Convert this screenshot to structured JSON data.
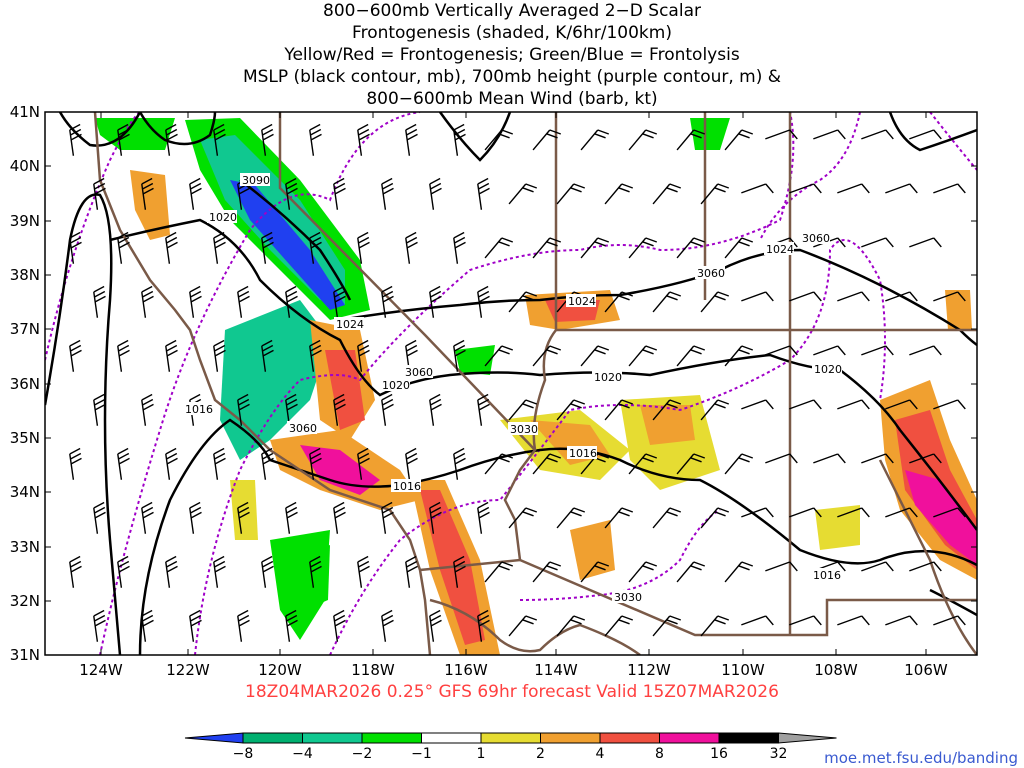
{
  "title_lines": [
    "800−600mb Vertically Averaged 2−D Scalar",
    "Frontogenesis (shaded, K/6hr/100km)",
    "Yellow/Red = Frontogenesis;  Green/Blue = Frontolysis",
    "MSLP (black contour, mb), 700mb height (purple contour, m) &",
    "800−600mb Mean Wind (barb, kt)"
  ],
  "lat_labels": [
    "41N",
    "40N",
    "39N",
    "38N",
    "37N",
    "36N",
    "35N",
    "34N",
    "33N",
    "32N",
    "31N"
  ],
  "lon_labels": [
    "124W",
    "122W",
    "120W",
    "118W",
    "116W",
    "114W",
    "112W",
    "110W",
    "108W",
    "106W"
  ],
  "mslp_labels": [
    "1020",
    "1024",
    "1020",
    "1016",
    "1016",
    "1024",
    "1020",
    "1024",
    "1020",
    "1016",
    "1016"
  ],
  "height_labels": [
    "3090",
    "3060",
    "3060",
    "3030",
    "3060",
    "3060",
    "3030"
  ],
  "footer": "18Z04MAR2026 0.25° GFS 69hr forecast Valid 15Z07MAR2026",
  "credit": "moe.met.fsu.edu/banding",
  "colorbar": {
    "labels": [
      "−8",
      "−4",
      "−2",
      "−1",
      "1",
      "2",
      "4",
      "8",
      "16",
      "32"
    ],
    "colors": [
      "#2040f0",
      "#00b070",
      "#10c890",
      "#00e000",
      "#ffffff",
      "#e6dc32",
      "#f0a030",
      "#f05040",
      "#f0109c",
      "#000000",
      "#a0a0a0"
    ]
  },
  "colors": {
    "mslp": "#000000",
    "height": "#a000c8",
    "border": "#7a5a48",
    "frontogenesis": "#f05040",
    "frontolysis": "#00e000"
  }
}
